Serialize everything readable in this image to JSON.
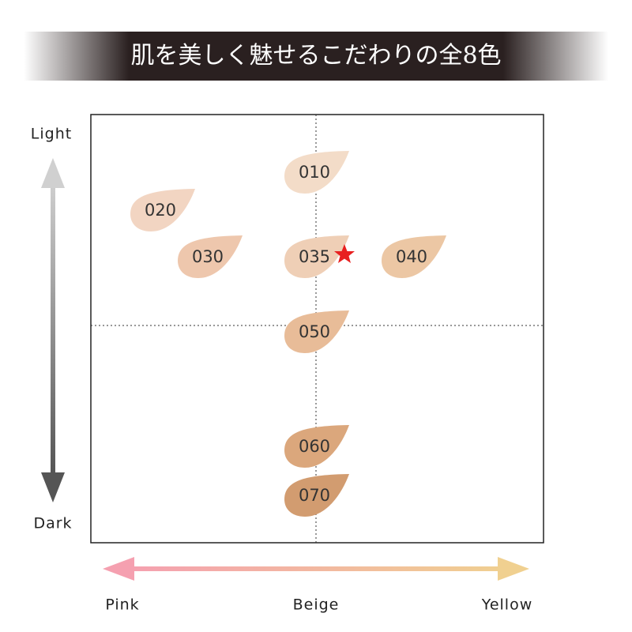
{
  "header": {
    "title": "肌を美しく魅せるこだわりの全8色"
  },
  "axes": {
    "top": "Light",
    "bottom": "Dark",
    "left": "Pink",
    "center": "Beige",
    "right": "Yellow"
  },
  "shades": [
    {
      "label": "010",
      "color": "#f3dcc8"
    },
    {
      "label": "020",
      "color": "#f2d5c2"
    },
    {
      "label": "030",
      "color": "#eec7ad"
    },
    {
      "label": "035",
      "color": "#efcfb6"
    },
    {
      "label": "040",
      "color": "#ecc7a4"
    },
    {
      "label": "050",
      "color": "#e8bc98"
    },
    {
      "label": "060",
      "color": "#dba77c"
    },
    {
      "label": "070",
      "color": "#d29c70"
    }
  ]
}
